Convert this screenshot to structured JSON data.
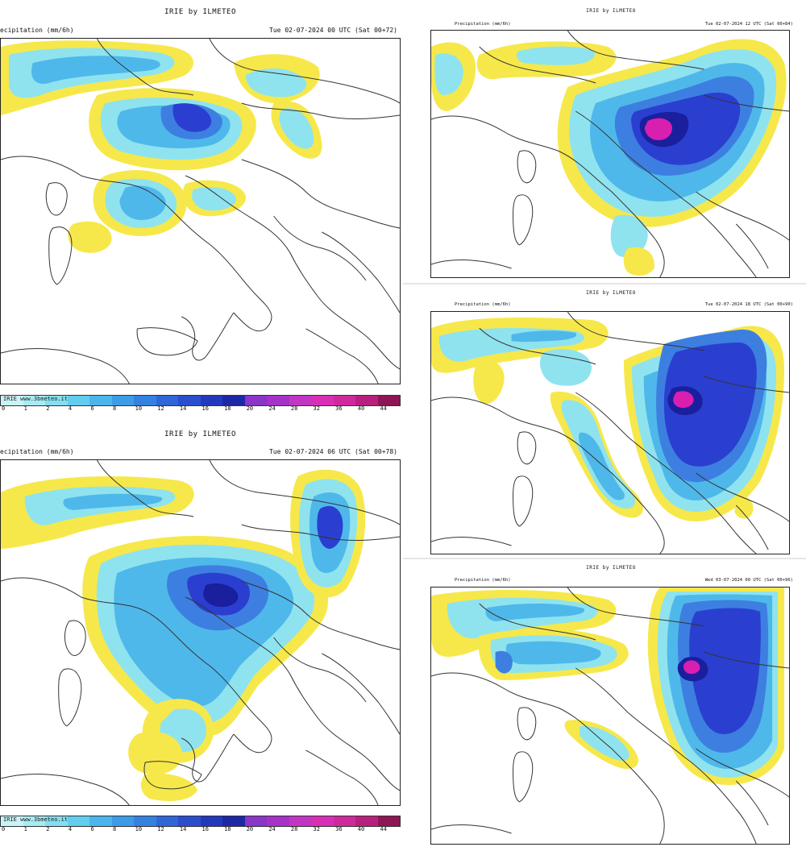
{
  "model_label": "IRIE by ILMETEO",
  "palette": {
    "yellow": "#f6e84a",
    "cyan": "#8fe3ef",
    "light_blue": "#4fb8ea",
    "mid_blue": "#3d7fe0",
    "dark_blue": "#2a3fcf",
    "navy": "#1a1f9e",
    "magenta": "#d81fb0"
  },
  "scale": {
    "credit": "IRIE  www.3bmeteo.it",
    "ticks": [
      "0",
      "1",
      "2",
      "4",
      "6",
      "8",
      "10",
      "12",
      "14",
      "16",
      "18",
      "20",
      "24",
      "28",
      "32",
      "36",
      "40",
      "44"
    ],
    "colors": [
      "#c8f4f8",
      "#a6ecf3",
      "#84dff0",
      "#62cdee",
      "#4ab6ec",
      "#3c9ce6",
      "#3581e0",
      "#2f66d8",
      "#2a4ecd",
      "#2339bd",
      "#1d28a6",
      "#8b35c9",
      "#a632c8",
      "#c236c3",
      "#d82fb6",
      "#cf2a9c",
      "#b8207e",
      "#8e1654"
    ]
  },
  "panels": [
    {
      "id": "panel-1",
      "field": "ecipitation  (mm/6h)",
      "date": "Tue  02-07-2024  00  UTC  (Sat  00+72)",
      "show_scale": true
    },
    {
      "id": "panel-2",
      "field": "ecipitation  (mm/6h)",
      "date": "Tue  02-07-2024  06  UTC  (Sat  00+78)",
      "show_scale": true
    },
    {
      "id": "panel-3",
      "field": "Precipitation  (mm/6h)",
      "date": "Tue  02-07-2024  12  UTC  (Sat  00+84)",
      "show_scale": false
    },
    {
      "id": "panel-4",
      "field": "Precipitation  (mm/6h)",
      "date": "Tue  02-07-2024  18  UTC  (Sat  00+90)",
      "show_scale": false
    },
    {
      "id": "panel-5",
      "field": "Precipitation  (mm/6h)",
      "date": "Wed  03-07-2024  00  UTC  (Sat  00+96)",
      "show_scale": false
    }
  ]
}
